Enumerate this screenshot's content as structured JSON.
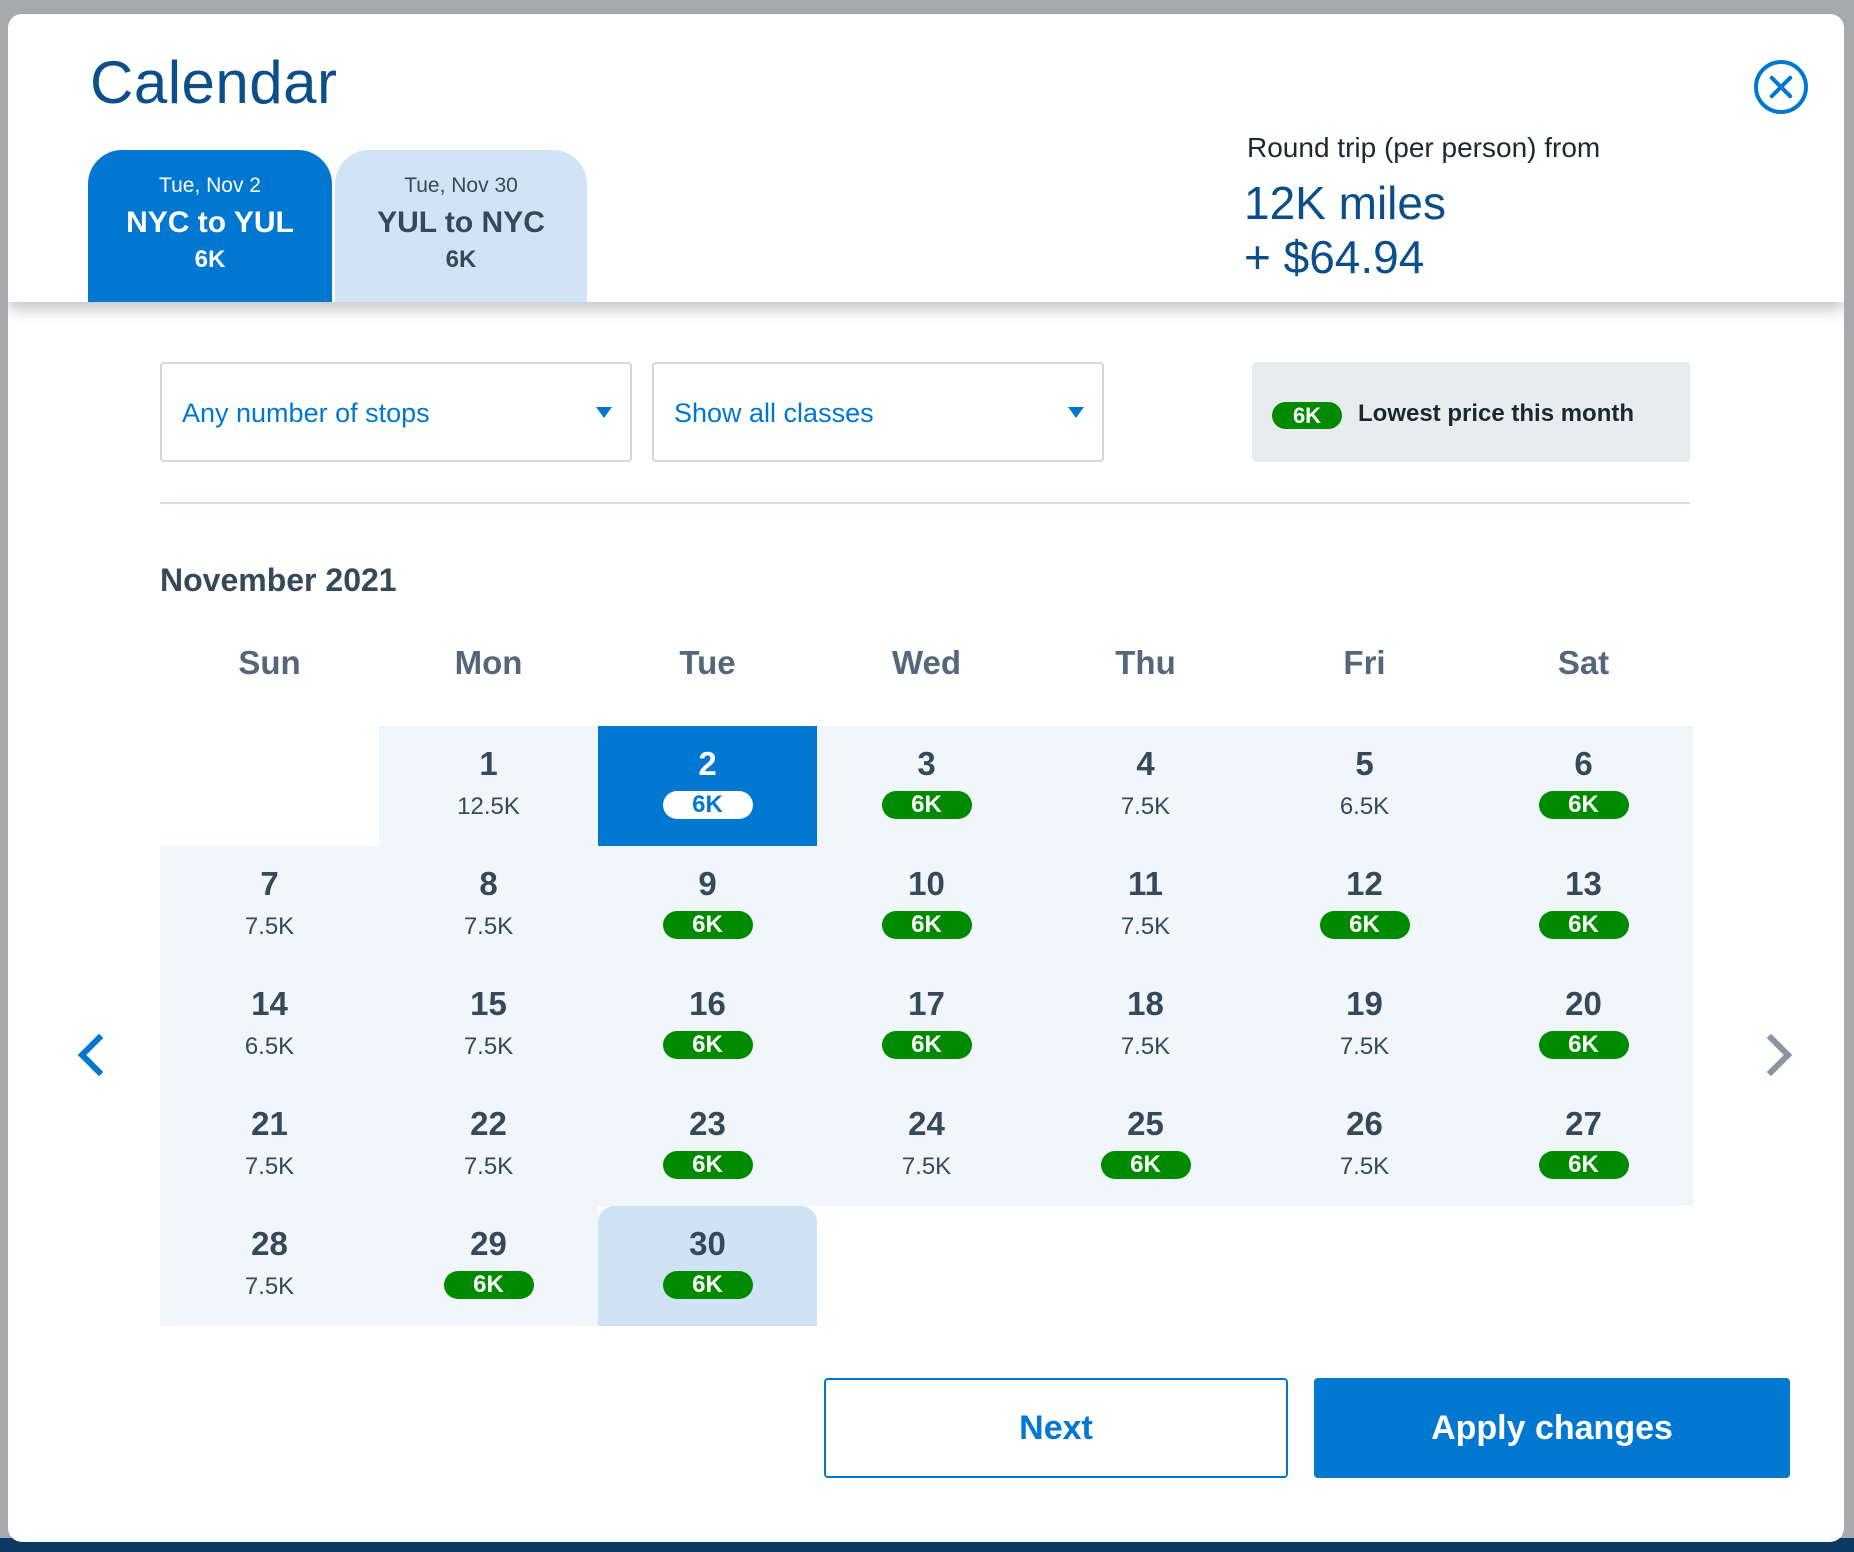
{
  "header": {
    "title": "Calendar",
    "tabs": [
      {
        "date": "Tue, Nov 2",
        "route": "NYC to YUL",
        "miles": "6K",
        "active": true
      },
      {
        "date": "Tue, Nov 30",
        "route": "YUL to NYC",
        "miles": "6K",
        "active": false
      }
    ],
    "fare": {
      "label": "Round trip (per person) from",
      "miles": "12K miles",
      "cash": "+ $64.94"
    }
  },
  "filters": {
    "stops": "Any number of stops",
    "classes": "Show all classes"
  },
  "legend": {
    "badge": "6K",
    "text": "Lowest price this month"
  },
  "calendar": {
    "month": "November 2021",
    "weekdays": [
      "Sun",
      "Mon",
      "Tue",
      "Wed",
      "Thu",
      "Fri",
      "Sat"
    ],
    "days": [
      {
        "day": "1",
        "price": "12.5K",
        "lowest": false
      },
      {
        "day": "2",
        "price": "6K",
        "lowest": true,
        "state": "selected"
      },
      {
        "day": "3",
        "price": "6K",
        "lowest": true
      },
      {
        "day": "4",
        "price": "7.5K",
        "lowest": false
      },
      {
        "day": "5",
        "price": "6.5K",
        "lowest": false
      },
      {
        "day": "6",
        "price": "6K",
        "lowest": true
      },
      {
        "day": "7",
        "price": "7.5K",
        "lowest": false
      },
      {
        "day": "8",
        "price": "7.5K",
        "lowest": false
      },
      {
        "day": "9",
        "price": "6K",
        "lowest": true
      },
      {
        "day": "10",
        "price": "6K",
        "lowest": true
      },
      {
        "day": "11",
        "price": "7.5K",
        "lowest": false
      },
      {
        "day": "12",
        "price": "6K",
        "lowest": true
      },
      {
        "day": "13",
        "price": "6K",
        "lowest": true
      },
      {
        "day": "14",
        "price": "6.5K",
        "lowest": false
      },
      {
        "day": "15",
        "price": "7.5K",
        "lowest": false
      },
      {
        "day": "16",
        "price": "6K",
        "lowest": true
      },
      {
        "day": "17",
        "price": "6K",
        "lowest": true
      },
      {
        "day": "18",
        "price": "7.5K",
        "lowest": false
      },
      {
        "day": "19",
        "price": "7.5K",
        "lowest": false
      },
      {
        "day": "20",
        "price": "6K",
        "lowest": true
      },
      {
        "day": "21",
        "price": "7.5K",
        "lowest": false
      },
      {
        "day": "22",
        "price": "7.5K",
        "lowest": false
      },
      {
        "day": "23",
        "price": "6K",
        "lowest": true
      },
      {
        "day": "24",
        "price": "7.5K",
        "lowest": false
      },
      {
        "day": "25",
        "price": "6K",
        "lowest": true
      },
      {
        "day": "26",
        "price": "7.5K",
        "lowest": false
      },
      {
        "day": "27",
        "price": "6K",
        "lowest": true
      },
      {
        "day": "28",
        "price": "7.5K",
        "lowest": false
      },
      {
        "day": "29",
        "price": "6K",
        "lowest": true
      },
      {
        "day": "30",
        "price": "6K",
        "lowest": true,
        "state": "return"
      }
    ]
  },
  "nav": {
    "prev_icon": "chevron-left-icon",
    "next_icon": "chevron-right-icon"
  },
  "buttons": {
    "next": "Next",
    "apply": "Apply changes"
  },
  "colors": {
    "primary": "#0078d2",
    "title": "#0b4e8a",
    "lowest_badge": "#008a00",
    "return_day": "#cfe3f4",
    "cell_bg": "#f1f6fa"
  }
}
